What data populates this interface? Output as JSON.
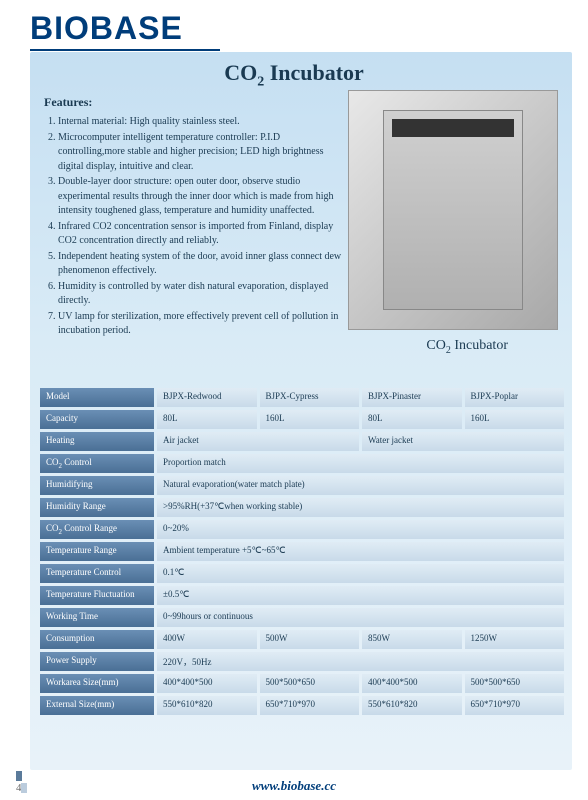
{
  "brand": "BIOBASE",
  "title_pre": "CO",
  "title_sub": "2",
  "title_post": " Incubator",
  "features_label": "Features:",
  "features": [
    "Internal material: High quality stainless steel.",
    "Microcomputer intelligent temperature controller: P.I.D controlling,more stable and higher precision; LED high brightness digital display, intuitive and clear.",
    "Double-layer door structure: open outer door, observe studio experimental results through the inner door which is made from high intensity toughened glass, temperature and humidity unaffected.",
    "Infrared CO2 concentration sensor is imported from Finland, display CO2 concentration directly and reliably.",
    "Independent heating system of the door, avoid inner glass connect dew phenomenon effectively.",
    "Humidity is controlled by water dish natural evaporation, displayed directly.",
    "UV lamp for sterilization, more effectively prevent cell of pollution in incubation period."
  ],
  "caption_pre": "CO",
  "caption_sub": "2",
  "caption_post": " Incubator",
  "specs": [
    {
      "label": "Model",
      "cells": [
        "BJPX-Redwood",
        "BJPX-Cypress",
        "BJPX-Pinaster",
        "BJPX-Poplar"
      ],
      "spans": [
        1,
        1,
        1,
        1
      ]
    },
    {
      "label": "Capacity",
      "cells": [
        "80L",
        "160L",
        "80L",
        "160L"
      ],
      "spans": [
        1,
        1,
        1,
        1
      ]
    },
    {
      "label": "Heating",
      "cells": [
        "Air jacket",
        "Water jacket"
      ],
      "spans": [
        2,
        2
      ]
    },
    {
      "label": "CO<sub>2</sub> Control",
      "cells": [
        "Proportion match"
      ],
      "spans": [
        4
      ]
    },
    {
      "label": "Humidifying",
      "cells": [
        "Natural evaporation(water match plate)"
      ],
      "spans": [
        4
      ]
    },
    {
      "label": "Humidity Range",
      "cells": [
        ">95%RH(+37℃when working stable)"
      ],
      "spans": [
        4
      ]
    },
    {
      "label": "CO<sub>2</sub> Control Range",
      "cells": [
        "0~20%"
      ],
      "spans": [
        4
      ]
    },
    {
      "label": "Temperature Range",
      "cells": [
        "Ambient temperature +5℃~65℃"
      ],
      "spans": [
        4
      ]
    },
    {
      "label": "Temperature Control",
      "cells": [
        "0.1℃"
      ],
      "spans": [
        4
      ]
    },
    {
      "label": "Temperature Fluctuation",
      "cells": [
        "±0.5℃"
      ],
      "spans": [
        4
      ]
    },
    {
      "label": "Working Time",
      "cells": [
        "0~99hours or continuous"
      ],
      "spans": [
        4
      ]
    },
    {
      "label": "Consumption",
      "cells": [
        "400W",
        "500W",
        "850W",
        "1250W"
      ],
      "spans": [
        1,
        1,
        1,
        1
      ]
    },
    {
      "label": "Power Supply",
      "cells": [
        "220V，50Hz"
      ],
      "spans": [
        4
      ]
    },
    {
      "label": "Workarea Size(mm)",
      "cells": [
        "400*400*500",
        "500*500*650",
        "400*400*500",
        "500*500*650"
      ],
      "spans": [
        1,
        1,
        1,
        1
      ]
    },
    {
      "label": "External Size(mm)",
      "cells": [
        "550*610*820",
        "650*710*970",
        "550*610*820",
        "650*710*970"
      ],
      "spans": [
        1,
        1,
        1,
        1
      ]
    }
  ],
  "page_num": "43",
  "footer_url": "www.biobase.cc"
}
